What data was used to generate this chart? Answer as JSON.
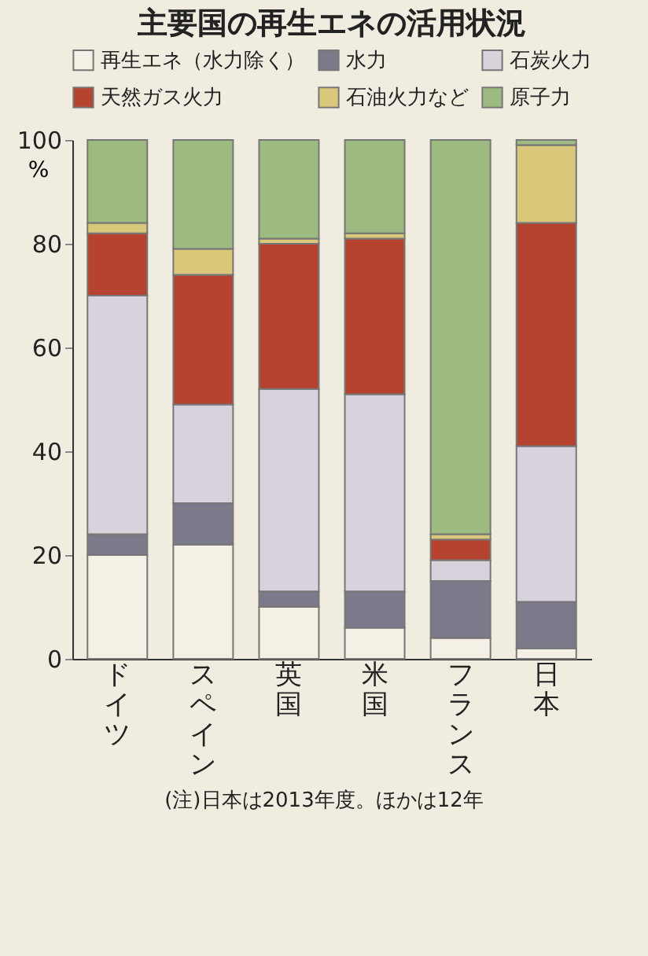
{
  "chart_data": {
    "type": "bar",
    "title": "主要国の再生エネの活用状況",
    "ylabel": "%",
    "stacked": true,
    "legend": "top",
    "categories": [
      "ドイツ",
      "スペイン",
      "英国",
      "米国",
      "フランス",
      "日本"
    ],
    "series": [
      {
        "name": "再生エネ（水力除く）",
        "color": "#f4f0e6",
        "values": [
          20,
          22,
          10,
          6,
          4,
          2
        ]
      },
      {
        "name": "水力",
        "color": "#7c7a8a",
        "values": [
          4,
          8,
          3,
          7,
          11,
          9
        ]
      },
      {
        "name": "石炭火力",
        "color": "#d8d2dc",
        "values": [
          46,
          19,
          39,
          38,
          4,
          30
        ]
      },
      {
        "name": "天然ガス火力",
        "color": "#b5432f",
        "values": [
          12,
          25,
          28,
          30,
          4,
          43
        ]
      },
      {
        "name": "石油火力など",
        "color": "#d9c77a",
        "values": [
          2,
          5,
          1,
          1,
          1,
          15
        ]
      },
      {
        "name": "原子力",
        "color": "#9dbb80",
        "values": [
          16,
          21,
          19,
          18,
          76,
          1
        ]
      }
    ],
    "ylim": [
      0,
      100
    ],
    "yticks": [
      0,
      20,
      40,
      60,
      80,
      100
    ],
    "annotations": [
      "(注)日本は2013年度。ほかは12年"
    ]
  }
}
